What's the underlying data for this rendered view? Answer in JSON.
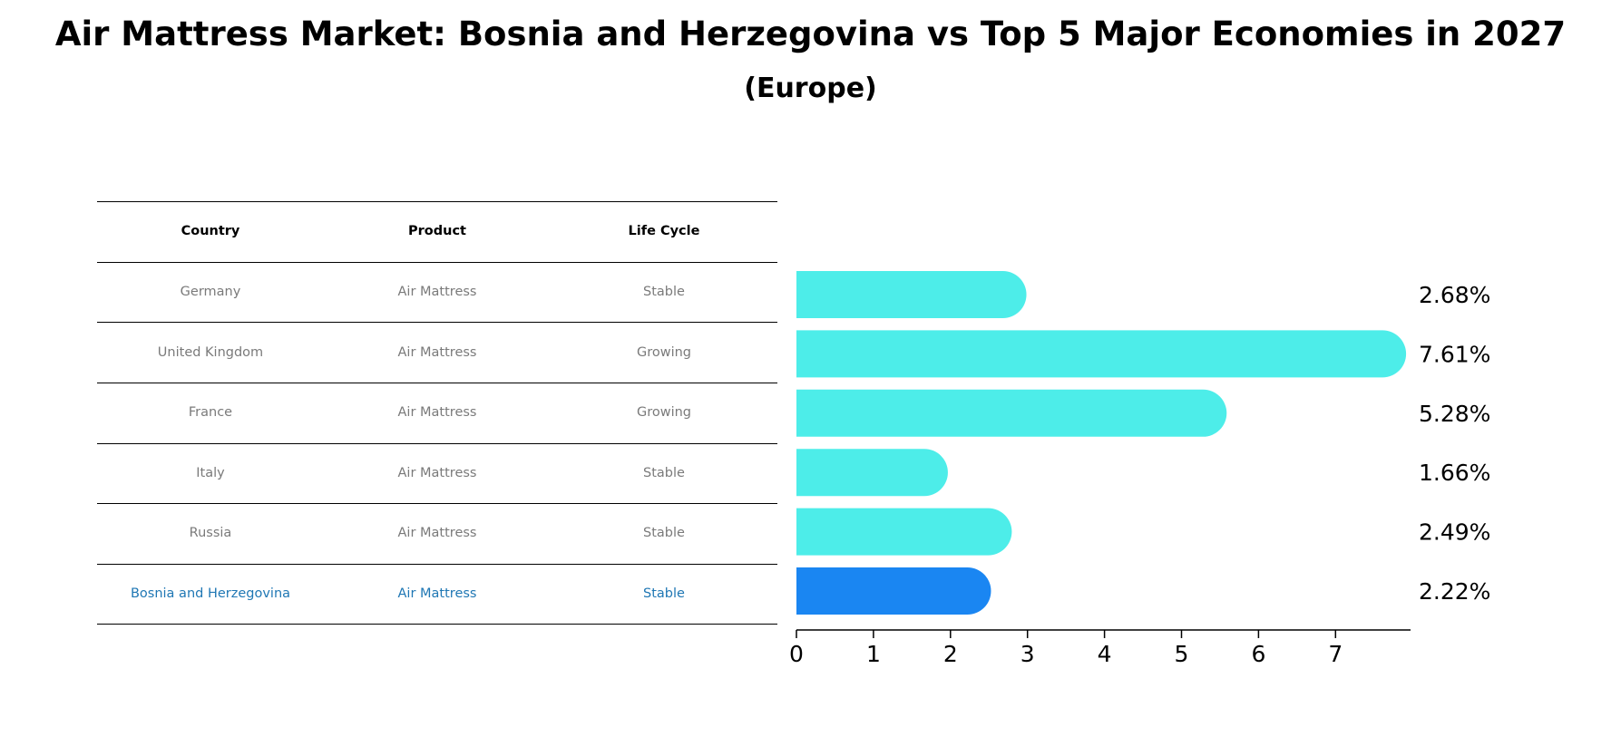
{
  "chart_data": {
    "type": "bar",
    "orientation": "horizontal",
    "title": "Air Mattress Market: Bosnia and Herzegovina vs Top 5 Major Economies in 2027",
    "subtitle": "(Europe)",
    "table": {
      "columns": [
        "Country",
        "Product",
        "Life Cycle"
      ],
      "rows": [
        {
          "country": "Germany",
          "product": "Air Mattress",
          "life_cycle": "Stable"
        },
        {
          "country": "United Kingdom",
          "product": "Air Mattress",
          "life_cycle": "Growing"
        },
        {
          "country": "France",
          "product": "Air Mattress",
          "life_cycle": "Growing"
        },
        {
          "country": "Italy",
          "product": "Air Mattress",
          "life_cycle": "Stable"
        },
        {
          "country": "Russia",
          "product": "Air Mattress",
          "life_cycle": "Stable"
        },
        {
          "country": "Bosnia and Herzegovina",
          "product": "Air Mattress",
          "life_cycle": "Stable"
        }
      ],
      "highlight_row": 5
    },
    "categories": [
      "Germany",
      "United Kingdom",
      "France",
      "Italy",
      "Russia",
      "Bosnia and Herzegovina"
    ],
    "values": [
      2.68,
      7.61,
      5.28,
      1.66,
      2.49,
      2.22
    ],
    "value_labels": [
      "2.68%",
      "7.61%",
      "5.28%",
      "1.66%",
      "2.49%",
      "2.22%"
    ],
    "xlim": [
      0,
      8
    ],
    "xticks": [
      0,
      1,
      2,
      3,
      4,
      5,
      6,
      7
    ],
    "colors": {
      "default": "#4dede9",
      "highlight": "#1a86f2",
      "table_highlight": "#1f77b4",
      "table_text": "#7a7a7a"
    }
  }
}
